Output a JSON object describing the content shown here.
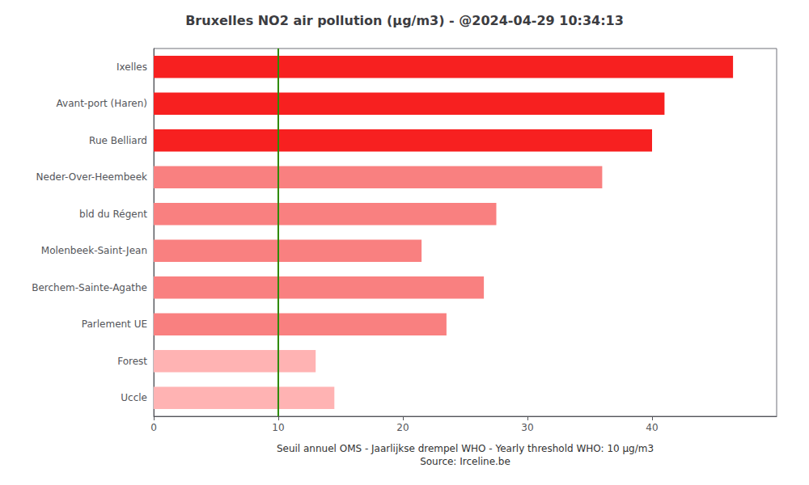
{
  "chart_data": {
    "type": "bar",
    "orientation": "horizontal",
    "title": "Bruxelles NO2 air pollution (μg/m3) - @2024-04-29 10:34:13",
    "xlabel": "Seuil annuel OMS - Jaarlijkse drempel WHO - Yearly threshold WHO: 10 μg/m3\nSource: Irceline.be",
    "categories": [
      "Ixelles",
      "Avant-port (Haren)",
      "Rue Belliard",
      "Neder-Over-Heembeek",
      "bld du Régent",
      "Molenbeek-Saint-Jean",
      "Berchem-Sainte-Agathe",
      "Parlement UE",
      "Forest",
      "Uccle"
    ],
    "values": [
      46.5,
      41.0,
      40.0,
      36.0,
      27.5,
      21.5,
      26.5,
      23.5,
      13.0,
      14.5
    ],
    "colors": [
      "#f72020",
      "#f72020",
      "#f72020",
      "#f98080",
      "#f98080",
      "#f98080",
      "#f98080",
      "#f98080",
      "#ffb3b3",
      "#ffb3b3"
    ],
    "threshold": {
      "value": 10,
      "color": "#2e8b00"
    },
    "xlim": [
      0,
      50
    ],
    "xticks": [
      0,
      10,
      20,
      30,
      40
    ],
    "grid": false
  }
}
